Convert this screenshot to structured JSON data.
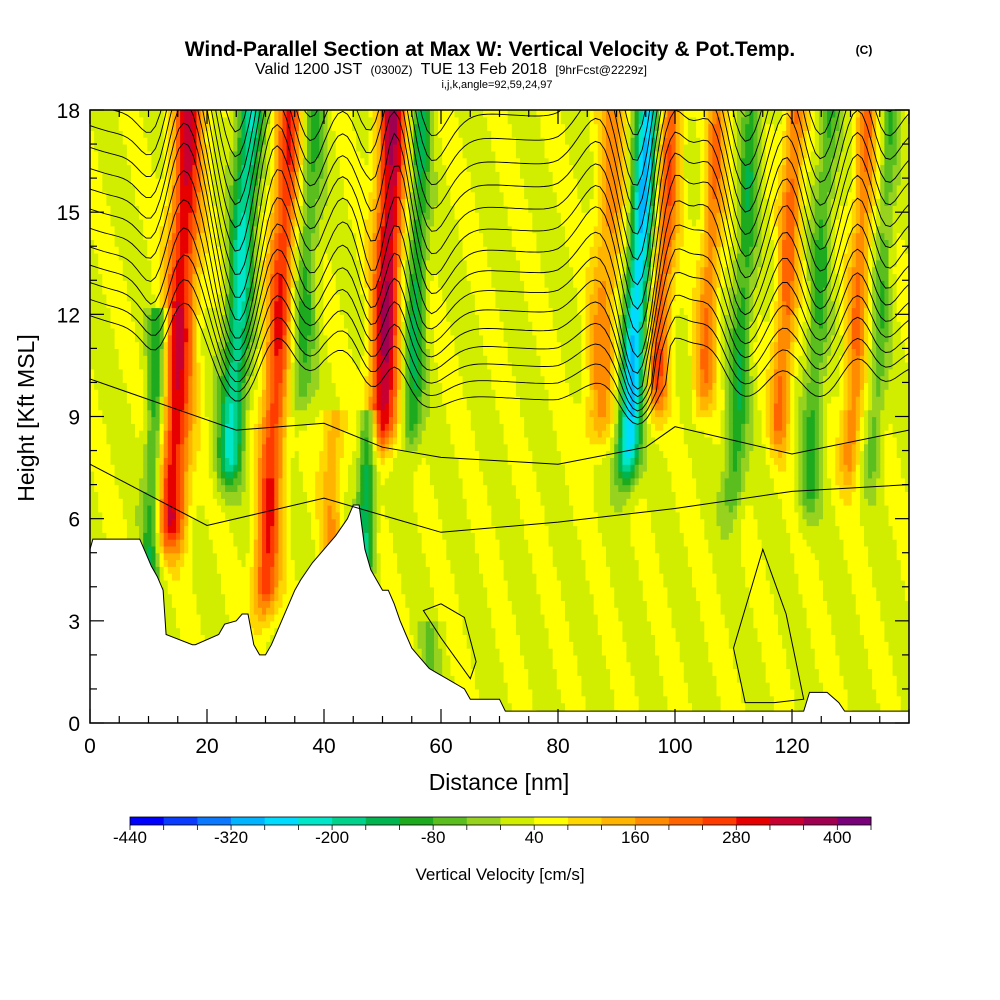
{
  "chart_data": {
    "type": "heatmap",
    "title": "Wind-Parallel Section at Max W: Vertical Velocity & Pot.Temp.",
    "copyright_mark": "(C)",
    "subtitle": {
      "valid_prefix": "Valid 1200 JST",
      "zulu": "(0300Z)",
      "date": "TUE 13 Feb 2018",
      "forecast": "[9hrFcst@2229z]"
    },
    "index_line": "i,j,k,angle=92,59,24,97",
    "xlabel": "Distance [nm]",
    "ylabel": "Height [Kft MSL]",
    "xlim": [
      0,
      140
    ],
    "ylim": [
      0,
      18
    ],
    "x_ticks": [
      0,
      20,
      40,
      60,
      80,
      100,
      120
    ],
    "x_ticklabels": [
      "0",
      "20",
      "40",
      "60",
      "80",
      "100",
      "120"
    ],
    "y_ticks": [
      0,
      3,
      6,
      9,
      12,
      15,
      18
    ],
    "y_ticklabels": [
      "0",
      "3",
      "6",
      "9",
      "12",
      "15",
      "18"
    ],
    "colorbar": {
      "label": "Vertical Velocity [cm/s]",
      "min": -440,
      "max": 440,
      "step": 40,
      "tick_values": [
        -440,
        -320,
        -200,
        -80,
        40,
        160,
        280,
        400
      ],
      "tick_labels": [
        "-440",
        "-320",
        "-200",
        "-80",
        "40",
        "160",
        "280",
        "400"
      ],
      "colors": [
        "#0000ff",
        "#0a3cff",
        "#0a78ff",
        "#00b4ff",
        "#00dcff",
        "#00e6c8",
        "#00d28c",
        "#00b450",
        "#1eaa1e",
        "#5abe1e",
        "#96d21e",
        "#d2ee00",
        "#ffff00",
        "#ffd700",
        "#ffb400",
        "#ff8c00",
        "#ff6400",
        "#ff3c00",
        "#e60000",
        "#c80032",
        "#a00050",
        "#780078"
      ]
    },
    "velocity_features": [
      {
        "x": 14,
        "amp": 280,
        "width": 2.6,
        "ztop": 18,
        "zbot": 6,
        "tilt": 0.25
      },
      {
        "x": 10,
        "amp": -160,
        "width": 1.6,
        "ztop": 12,
        "zbot": 3,
        "tilt": 0.2
      },
      {
        "x": 24,
        "amp": -240,
        "width": 2.2,
        "ztop": 18,
        "zbot": 8,
        "tilt": 0.35
      },
      {
        "x": 30,
        "amp": 240,
        "width": 2.2,
        "ztop": 18,
        "zbot": 4,
        "tilt": 0.3
      },
      {
        "x": 36,
        "amp": -120,
        "width": 2.0,
        "ztop": 18,
        "zbot": 10,
        "tilt": 0.3
      },
      {
        "x": 41,
        "amp": 120,
        "width": 2.0,
        "ztop": 9,
        "zbot": 3,
        "tilt": 0.1
      },
      {
        "x": 47,
        "amp": -200,
        "width": 1.5,
        "ztop": 9,
        "zbot": 5,
        "tilt": 0.15
      },
      {
        "x": 50,
        "amp": 320,
        "width": 2.4,
        "ztop": 18,
        "zbot": 9,
        "tilt": 0.2
      },
      {
        "x": 55,
        "amp": -160,
        "width": 1.8,
        "ztop": 18,
        "zbot": 9,
        "tilt": 0.2
      },
      {
        "x": 58,
        "amp": -60,
        "width": 2.0,
        "ztop": 3,
        "zbot": 1,
        "tilt": 0
      },
      {
        "x": 87,
        "amp": 140,
        "width": 2.5,
        "ztop": 18,
        "zbot": 9,
        "tilt": 0.3
      },
      {
        "x": 92,
        "amp": -320,
        "width": 2.0,
        "ztop": 18,
        "zbot": 8,
        "tilt": 0.35
      },
      {
        "x": 97,
        "amp": 200,
        "width": 2.0,
        "ztop": 18,
        "zbot": 10,
        "tilt": 0.3
      },
      {
        "x": 105,
        "amp": 160,
        "width": 1.8,
        "ztop": 18,
        "zbot": 10,
        "tilt": 0.3
      },
      {
        "x": 110,
        "amp": -140,
        "width": 1.8,
        "ztop": 18,
        "zbot": 7,
        "tilt": 0.3
      },
      {
        "x": 118,
        "amp": 180,
        "width": 1.8,
        "ztop": 18,
        "zbot": 9,
        "tilt": 0.3
      },
      {
        "x": 123,
        "amp": -120,
        "width": 1.8,
        "ztop": 18,
        "zbot": 7,
        "tilt": 0.3
      },
      {
        "x": 130,
        "amp": 160,
        "width": 1.8,
        "ztop": 18,
        "zbot": 8,
        "tilt": 0.3
      },
      {
        "x": 134,
        "amp": -100,
        "width": 1.5,
        "ztop": 18,
        "zbot": 8,
        "tilt": 0.3
      }
    ],
    "terrain": {
      "x": [
        0,
        0.5,
        2,
        8.5,
        9.5,
        10.5,
        11.5,
        12.5,
        13,
        17.5,
        18,
        22,
        23,
        25,
        26,
        27,
        28,
        29,
        30,
        31,
        35,
        36,
        38,
        40,
        42,
        44,
        45,
        46,
        47,
        48,
        49,
        50,
        51,
        52,
        53,
        54,
        55,
        56,
        57,
        58,
        59,
        60,
        61,
        62,
        63,
        64,
        65,
        70,
        71,
        122,
        123,
        125,
        126,
        128,
        129,
        140
      ],
      "height": [
        5.1,
        5.4,
        5.4,
        5.4,
        5.0,
        4.6,
        4.3,
        3.9,
        2.6,
        2.3,
        2.3,
        2.6,
        2.9,
        3.0,
        3.2,
        3.2,
        2.3,
        2.0,
        2.0,
        2.3,
        3.9,
        4.2,
        4.7,
        5.1,
        5.5,
        6.0,
        6.4,
        6.4,
        5.1,
        4.5,
        4.2,
        3.9,
        3.9,
        3.5,
        3.0,
        2.6,
        2.2,
        2.0,
        1.8,
        1.6,
        1.5,
        1.4,
        1.3,
        1.2,
        1.1,
        1.0,
        0.7,
        0.7,
        0.35,
        0.35,
        0.9,
        0.9,
        0.9,
        0.6,
        0.35,
        0.35
      ]
    },
    "theta_contours": [
      {
        "label": "",
        "x": [
          0,
          20,
          40,
          60,
          80,
          100,
          120,
          140
        ],
        "height": [
          7.6,
          5.8,
          6.6,
          5.6,
          5.9,
          6.3,
          6.8,
          7.0
        ]
      },
      {
        "label": "",
        "x": [
          0,
          15,
          25,
          40,
          50,
          60,
          80,
          95,
          100,
          120,
          140
        ],
        "height": [
          10.1,
          9.2,
          8.6,
          8.8,
          8.1,
          7.8,
          7.6,
          8.1,
          8.7,
          7.9,
          8.6
        ]
      }
    ],
    "theta_contour_spacing": 0.45,
    "theta_contour_count": 18,
    "cold_pool_contours": [
      {
        "label": "",
        "x": [
          57,
          60,
          64,
          66,
          65,
          60,
          57
        ],
        "height": [
          3.3,
          3.5,
          3.1,
          1.8,
          1.3,
          2.5,
          3.3
        ]
      },
      {
        "label": "",
        "x": [
          115,
          119,
          122,
          117,
          112,
          110,
          115
        ],
        "height": [
          5.1,
          3.2,
          0.7,
          0.6,
          0.6,
          2.2,
          5.1
        ]
      }
    ]
  }
}
